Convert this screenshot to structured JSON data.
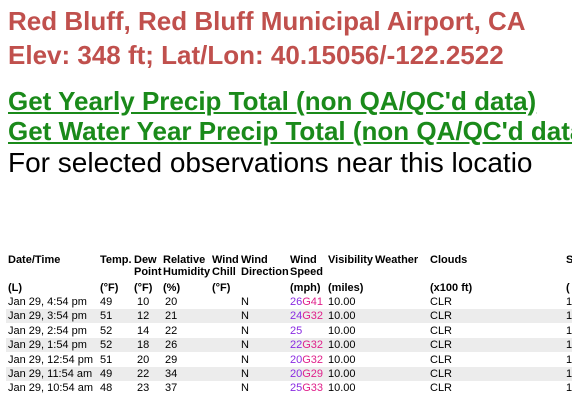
{
  "header": {
    "title": "Red Bluff, Red Bluff Municipal Airport, CA",
    "subtitle": "Elev: 348 ft; Lat/Lon: 40.15056/-122.2522"
  },
  "links": [
    "Get Yearly Precip Total (non QA/QC'd data)",
    "Get Water Year Precip Total (non QA/QC'd data)"
  ],
  "intro": "For selected observations near this locatio",
  "table": {
    "headers": [
      [
        "Date/Time"
      ],
      [
        "Temp."
      ],
      [
        "Dew",
        "Point"
      ],
      [
        "Relative",
        "Humidity"
      ],
      [
        "Wind",
        "Chill"
      ],
      [
        "Wind",
        "Direction"
      ],
      [
        "Wind",
        "Speed"
      ],
      [
        "Visibility"
      ],
      [
        "Weather"
      ],
      [
        "Clouds"
      ],
      [
        "S"
      ]
    ],
    "units": [
      "(L)",
      "(°F)",
      "(°F)",
      "(%)",
      "(°F)",
      "",
      "(mph)",
      "(miles)",
      "",
      "(x100 ft)",
      "("
    ],
    "rows": [
      [
        "Jan 29, 4:54 pm",
        "49",
        "10",
        "20",
        "",
        "N",
        [
          "26",
          "G41"
        ],
        "10.00",
        "",
        "CLR",
        "1"
      ],
      [
        "Jan 29, 3:54 pm",
        "51",
        "12",
        "21",
        "",
        "N",
        [
          "24",
          "G32"
        ],
        "10.00",
        "",
        "CLR",
        "1"
      ],
      [
        "Jan 29, 2:54 pm",
        "52",
        "14",
        "22",
        "",
        "N",
        [
          "25"
        ],
        "10.00",
        "",
        "CLR",
        "1"
      ],
      [
        "Jan 29, 1:54 pm",
        "52",
        "18",
        "26",
        "",
        "N",
        [
          "22",
          "G32"
        ],
        "10.00",
        "",
        "CLR",
        "1"
      ],
      [
        "Jan 29, 12:54 pm",
        "51",
        "20",
        "29",
        "",
        "N",
        [
          "20",
          "G32"
        ],
        "10.00",
        "",
        "CLR",
        "1"
      ],
      [
        "Jan 29, 11:54 am",
        "49",
        "22",
        "34",
        "",
        "N",
        [
          "20",
          "G29"
        ],
        "10.00",
        "",
        "CLR",
        "1"
      ],
      [
        "Jan 29, 10:54 am",
        "48",
        "23",
        "37",
        "",
        "N",
        [
          "25",
          "G33"
        ],
        "10.00",
        "",
        "CLR",
        "1"
      ]
    ]
  }
}
